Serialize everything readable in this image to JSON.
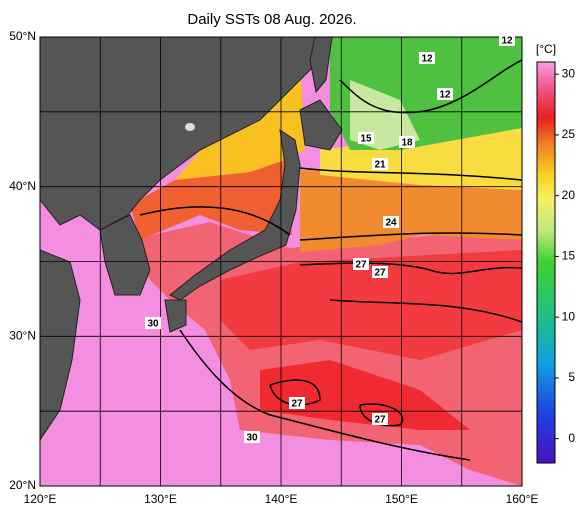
{
  "title": "Daily SSTs 08 Aug. 2026.",
  "lon_labels": [
    "120°E",
    "130°E",
    "140°E",
    "150°E",
    "160°E"
  ],
  "lat_labels": [
    "20°N",
    "30°N",
    "40°N",
    "50°N"
  ],
  "contour_labels": [
    12,
    12,
    12,
    15,
    18,
    21,
    24,
    27,
    27,
    27,
    27,
    30,
    30
  ],
  "colorbar": {
    "unit": "[°C]",
    "range": [
      -2,
      31
    ],
    "ticks": [
      0,
      5,
      10,
      15,
      20,
      25,
      30
    ]
  }
}
